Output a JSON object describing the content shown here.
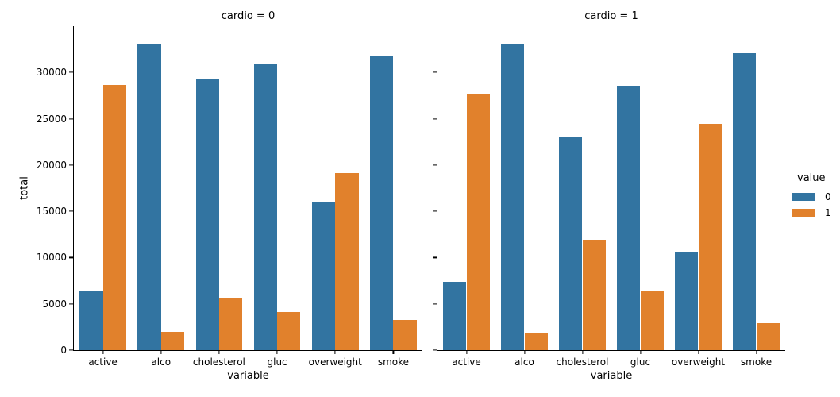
{
  "chart_data": {
    "type": "bar",
    "facet_field": "cardio",
    "categories": [
      "active",
      "alco",
      "cholesterol",
      "gluc",
      "overweight",
      "smoke"
    ],
    "xlabel": "variable",
    "ylabel": "total",
    "ylim": [
      0,
      35000
    ],
    "yticks": [
      0,
      5000,
      10000,
      15000,
      20000,
      25000,
      30000
    ],
    "grid": false,
    "legend_position": "right",
    "legend": {
      "title": "value",
      "entries": [
        {
          "label": "0",
          "color": "#3274a1"
        },
        {
          "label": "1",
          "color": "#e1812c"
        }
      ]
    },
    "facets": [
      {
        "title": "cardio = 0",
        "series": [
          {
            "name": "0",
            "color": "#3274a1",
            "values": [
              6378,
              33080,
              29330,
              30894,
              15915,
              31781
            ]
          },
          {
            "name": "1",
            "color": "#e1812c",
            "values": [
              28643,
              1941,
              5691,
              4127,
              19106,
              3240
            ]
          }
        ]
      },
      {
        "title": "cardio = 1",
        "series": [
          {
            "name": "0",
            "color": "#3274a1",
            "values": [
              7361,
              33156,
              23055,
              28585,
              10539,
              32050
            ]
          },
          {
            "name": "1",
            "color": "#e1812c",
            "values": [
              27618,
              1823,
              11924,
              6394,
              24440,
              2929
            ]
          }
        ]
      }
    ]
  },
  "colors": {
    "bar_blue": "#3274a1",
    "bar_orange": "#e1812c",
    "axis": "#000000",
    "background": "#ffffff"
  }
}
